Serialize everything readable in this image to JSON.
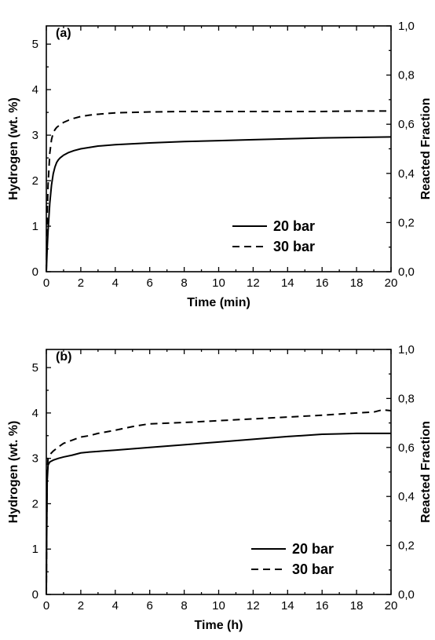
{
  "chart_data": [
    {
      "type": "line",
      "panel_label": "(a)",
      "xlabel": "Time (min)",
      "ylabel": "Hydrogen (wt. %)",
      "y2label": "Reacted Fraction",
      "xlim": [
        0,
        20
      ],
      "ylim": [
        0,
        5.4
      ],
      "y2lim": [
        0,
        1.0
      ],
      "x_ticks": [
        "0",
        "2",
        "4",
        "6",
        "8",
        "10",
        "12",
        "14",
        "16",
        "18",
        "20"
      ],
      "y_ticks": [
        "0",
        "1",
        "2",
        "3",
        "4",
        "5"
      ],
      "y2_ticks": [
        "0,0",
        "0,2",
        "0,4",
        "0,6",
        "0,8",
        "1,0"
      ],
      "legend_position": "bottom-right",
      "grid": false,
      "series": [
        {
          "name": "20 bar",
          "style": "solid",
          "x": [
            0,
            0.05,
            0.1,
            0.2,
            0.3,
            0.4,
            0.5,
            0.6,
            0.7,
            0.8,
            1.0,
            1.3,
            1.6,
            2,
            2.5,
            3,
            4,
            5,
            6,
            8,
            10,
            12,
            14,
            16,
            18,
            20
          ],
          "y": [
            0,
            0.5,
            0.9,
            1.5,
            1.9,
            2.15,
            2.3,
            2.4,
            2.46,
            2.5,
            2.56,
            2.62,
            2.66,
            2.7,
            2.73,
            2.76,
            2.79,
            2.81,
            2.83,
            2.86,
            2.88,
            2.9,
            2.92,
            2.94,
            2.95,
            2.96
          ]
        },
        {
          "name": "30 bar",
          "style": "dashed",
          "x": [
            0,
            0.05,
            0.1,
            0.2,
            0.3,
            0.4,
            0.5,
            0.6,
            0.8,
            1.0,
            1.3,
            1.6,
            2,
            2.5,
            3,
            4,
            5,
            6,
            8,
            10,
            12,
            14,
            16,
            18,
            20
          ],
          "y": [
            0,
            1.2,
            1.9,
            2.6,
            2.9,
            3.05,
            3.12,
            3.17,
            3.23,
            3.28,
            3.33,
            3.37,
            3.41,
            3.44,
            3.46,
            3.49,
            3.5,
            3.51,
            3.52,
            3.52,
            3.52,
            3.52,
            3.52,
            3.53,
            3.53
          ]
        }
      ]
    },
    {
      "type": "line",
      "panel_label": "(b)",
      "xlabel": "Time (h)",
      "ylabel": "Hydrogen (wt. %)",
      "y2label": "Reacted Fraction",
      "xlim": [
        0,
        20
      ],
      "ylim": [
        0,
        5.4
      ],
      "y2lim": [
        0,
        1.0
      ],
      "x_ticks": [
        "0",
        "2",
        "4",
        "6",
        "8",
        "10",
        "12",
        "14",
        "16",
        "18",
        "20"
      ],
      "y_ticks": [
        "0",
        "1",
        "2",
        "3",
        "4",
        "5"
      ],
      "y2_ticks": [
        "0,0",
        "0,2",
        "0,4",
        "0,6",
        "0,8",
        "1,0"
      ],
      "legend_position": "bottom-right",
      "grid": false,
      "series": [
        {
          "name": "20 bar",
          "style": "solid",
          "x": [
            0,
            0.02,
            0.05,
            0.1,
            0.2,
            0.4,
            0.7,
            1.0,
            1.5,
            2.0,
            2.5,
            4,
            6,
            8,
            10,
            12,
            14,
            16,
            17,
            18,
            19,
            19.6,
            20
          ],
          "y": [
            0,
            1.2,
            2.5,
            2.85,
            2.92,
            2.96,
            3.0,
            3.03,
            3.07,
            3.12,
            3.14,
            3.18,
            3.24,
            3.3,
            3.36,
            3.42,
            3.48,
            3.53,
            3.54,
            3.55,
            3.55,
            3.55,
            3.55
          ]
        },
        {
          "name": "30 bar",
          "style": "dashed",
          "x": [
            0,
            0.02,
            0.05,
            0.1,
            0.2,
            0.4,
            0.7,
            1.0,
            1.5,
            2.0,
            2.5,
            3,
            4,
            5,
            5.8,
            6,
            8,
            10,
            12,
            14,
            16,
            18,
            19,
            19.5,
            20
          ],
          "y": [
            0,
            1.3,
            2.7,
            3.0,
            3.08,
            3.16,
            3.25,
            3.33,
            3.4,
            3.47,
            3.5,
            3.55,
            3.62,
            3.7,
            3.75,
            3.76,
            3.79,
            3.83,
            3.87,
            3.91,
            3.95,
            4.0,
            4.02,
            4.07,
            4.05
          ]
        }
      ]
    }
  ]
}
